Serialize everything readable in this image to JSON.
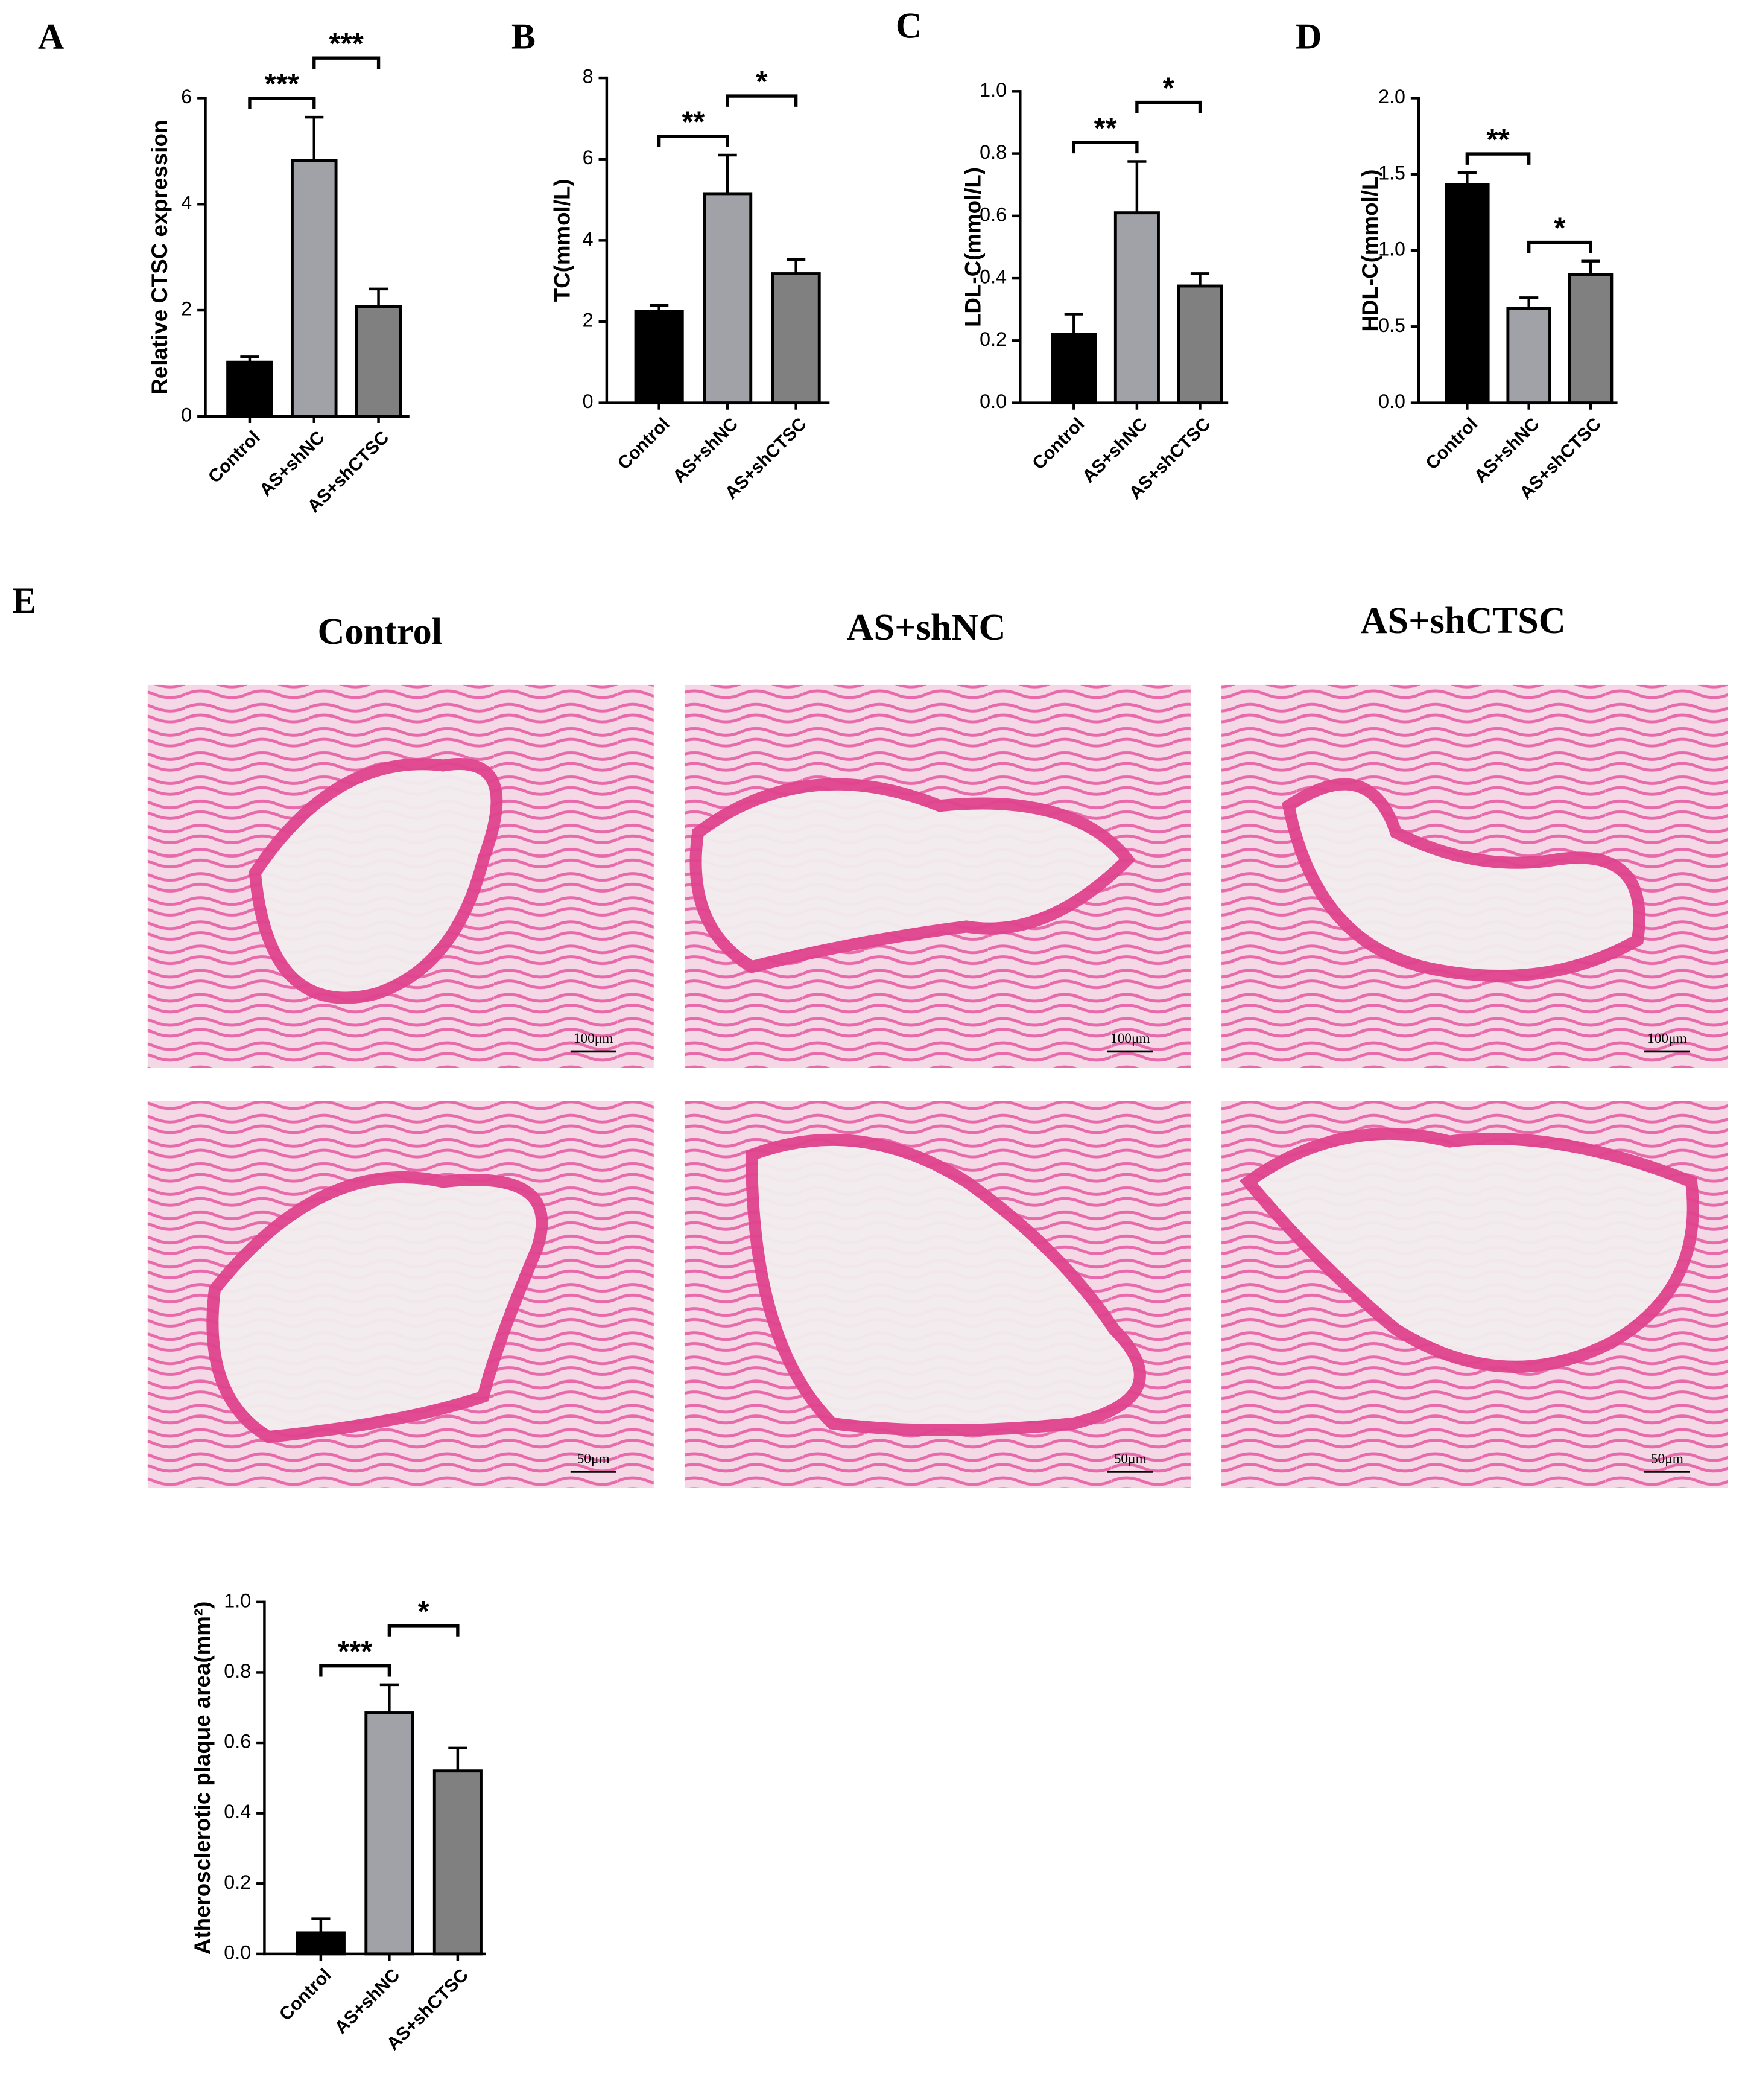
{
  "chart_data": [
    {
      "type": "bar",
      "panel": "A",
      "ylabel": "Relative CTSC expression",
      "categories": [
        "Control",
        "AS+shNC",
        "AS+shCTSC"
      ],
      "values": [
        1.02,
        4.82,
        2.07
      ],
      "errors": [
        0.1,
        0.82,
        0.33
      ],
      "colors": [
        "#000000",
        "#a1a1a8",
        "#808080"
      ],
      "ylim": [
        0,
        6
      ],
      "yticks": [
        0,
        2,
        4,
        6
      ],
      "brackets": [
        {
          "label": "***",
          "between": [
            0,
            1
          ]
        },
        {
          "label": "***",
          "between": [
            1,
            2
          ]
        }
      ]
    },
    {
      "type": "bar",
      "panel": "B",
      "ylabel": "TC(mmol/L)",
      "categories": [
        "Control",
        "AS+shNC",
        "AS+shCTSC"
      ],
      "values": [
        2.25,
        5.15,
        3.18
      ],
      "errors": [
        0.15,
        0.95,
        0.35
      ],
      "colors": [
        "#000000",
        "#a1a1a8",
        "#808080"
      ],
      "ylim": [
        0,
        8
      ],
      "yticks": [
        0,
        2,
        4,
        6,
        8
      ],
      "brackets": [
        {
          "label": "**",
          "between": [
            0,
            1
          ]
        },
        {
          "label": "*",
          "between": [
            1,
            2
          ]
        }
      ]
    },
    {
      "type": "bar",
      "panel": "C",
      "ylabel": "LDL-C(mmol/L)",
      "categories": [
        "Control",
        "AS+shNC",
        "AS+shCTSC"
      ],
      "values": [
        0.22,
        0.61,
        0.375
      ],
      "errors": [
        0.065,
        0.165,
        0.04
      ],
      "colors": [
        "#000000",
        "#a1a1a8",
        "#808080"
      ],
      "ylim": [
        0,
        1
      ],
      "yticks": [
        {
          "value": 0,
          "label": "0.0"
        },
        0.2,
        0.4,
        0.6,
        0.8,
        {
          "value": 1,
          "label": "1.0"
        }
      ],
      "brackets": [
        {
          "label": "**",
          "between": [
            0,
            1
          ]
        },
        {
          "label": "*",
          "between": [
            1,
            2
          ]
        }
      ]
    },
    {
      "type": "bar",
      "panel": "D",
      "ylabel": "HDL-C(mmol/L)",
      "categories": [
        "Control",
        "AS+shNC",
        "AS+shCTSC"
      ],
      "values": [
        1.43,
        0.62,
        0.84
      ],
      "errors": [
        0.08,
        0.07,
        0.09
      ],
      "colors": [
        "#000000",
        "#a1a1a8",
        "#808080"
      ],
      "ylim": [
        0,
        2
      ],
      "yticks": [
        {
          "value": 0,
          "label": "0.0"
        },
        0.5,
        {
          "value": 1,
          "label": "1.0"
        },
        1.5,
        {
          "value": 2,
          "label": "2.0"
        }
      ],
      "brackets": [
        {
          "label": "**",
          "between": [
            0,
            1
          ]
        },
        {
          "label": "*",
          "between": [
            1,
            2
          ]
        }
      ]
    },
    {
      "type": "bar",
      "ylabel": "Atherosclerotic plaque area(mm²)",
      "categories": [
        "Control",
        "AS+shNC",
        "AS+shCTSC"
      ],
      "values": [
        0.06,
        0.685,
        0.52
      ],
      "errors": [
        0.04,
        0.08,
        0.065
      ],
      "colors": [
        "#000000",
        "#a1a1a8",
        "#808080"
      ],
      "ylim": [
        0,
        1
      ],
      "yticks": [
        {
          "value": 0,
          "label": "0.0"
        },
        0.2,
        0.4,
        0.6,
        0.8,
        {
          "value": 1,
          "label": "1.0"
        }
      ],
      "brackets": [
        {
          "label": "***",
          "between": [
            0,
            1
          ]
        },
        {
          "label": "*",
          "between": [
            1,
            2
          ]
        }
      ]
    }
  ],
  "histology": {
    "panel": "E",
    "columns": [
      "Control",
      "AS+shNC",
      "AS+shCTSC"
    ],
    "scale_bars": [
      [
        "100μm",
        "100μm",
        "100μm"
      ],
      [
        "50μm",
        "50μm",
        "50μm"
      ]
    ]
  }
}
